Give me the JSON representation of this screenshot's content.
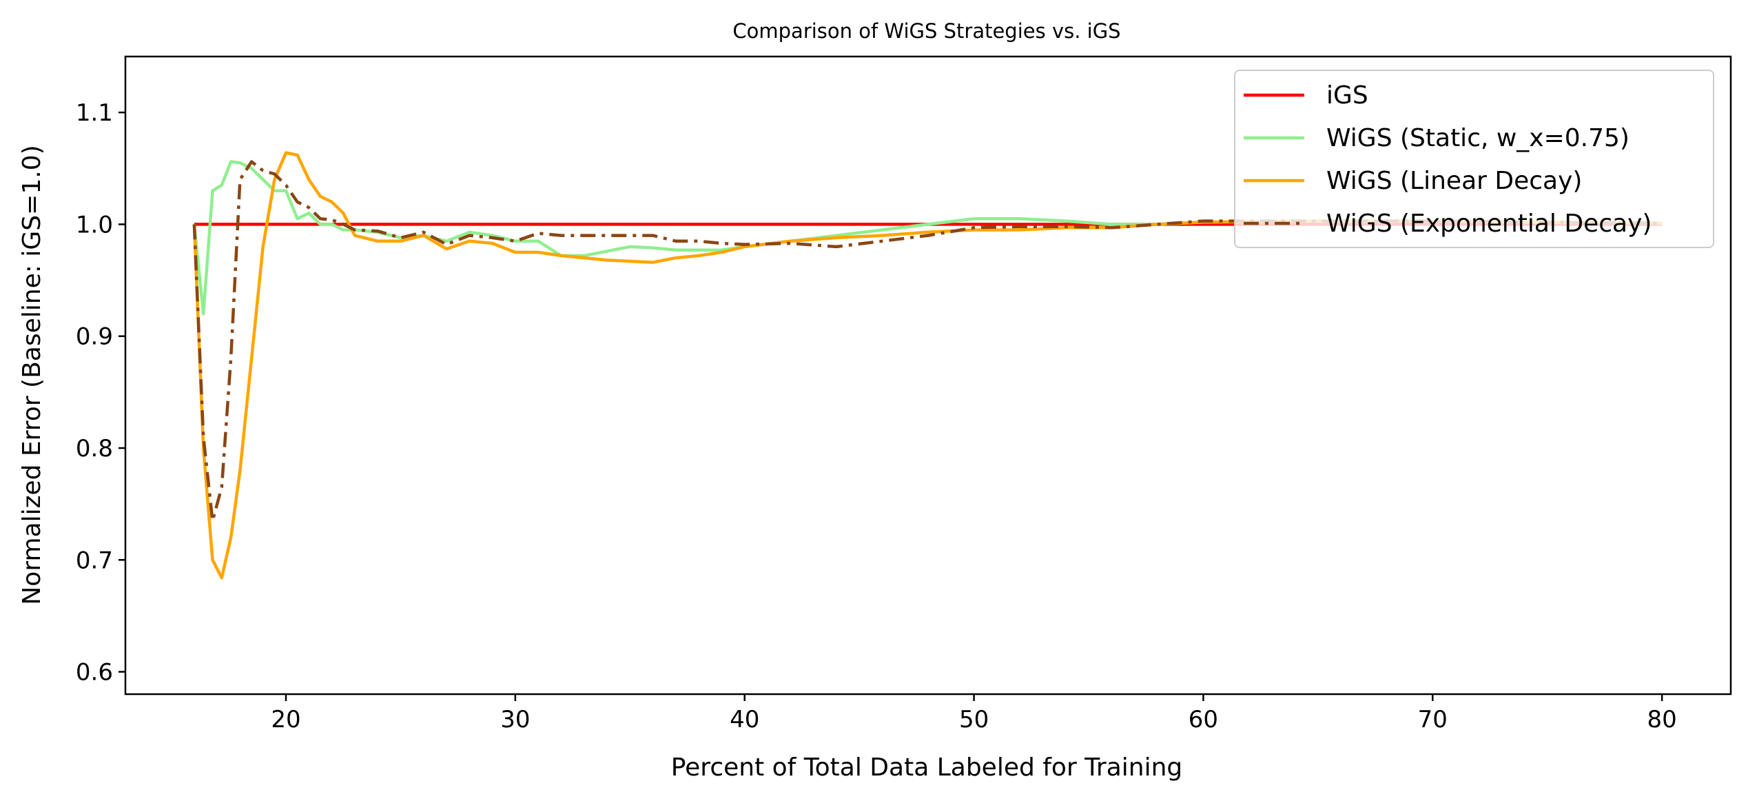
{
  "chart_data": {
    "type": "line",
    "title": "Comparison of WiGS Strategies vs. iGS",
    "xlabel": "Percent of Total Data Labeled for Training",
    "ylabel": "Normalized Error (Baseline: iGS=1.0)",
    "xlim": [
      13,
      83
    ],
    "ylim": [
      0.58,
      1.15
    ],
    "xticks": [
      20,
      30,
      40,
      50,
      60,
      70,
      80
    ],
    "xtick_labels": [
      "20",
      "30",
      "40",
      "50",
      "60",
      "70",
      "80"
    ],
    "yticks": [
      0.6,
      0.7,
      0.8,
      0.9,
      1.0,
      1.1
    ],
    "ytick_labels": [
      "0.6",
      "0.7",
      "0.8",
      "0.9",
      "1.0",
      "1.1"
    ],
    "grid": false,
    "legend_position": "upper right",
    "series": [
      {
        "name": "iGS",
        "color": "#ff0000",
        "style": "solid",
        "x": [
          16,
          80
        ],
        "y": [
          1.0,
          1.0
        ]
      },
      {
        "name": "WiGS (Static, w_x=0.75)",
        "color": "#90ee90",
        "style": "solid",
        "x": [
          16,
          16.4,
          16.8,
          17.2,
          17.6,
          18.0,
          18.5,
          19.0,
          19.5,
          20.0,
          20.5,
          21.0,
          21.5,
          22.0,
          22.5,
          23.0,
          24.0,
          25.0,
          26.0,
          27.0,
          28.0,
          29.0,
          30.0,
          31.0,
          32.0,
          33.0,
          34.0,
          35.0,
          36.0,
          37.0,
          38.0,
          39.0,
          40.0,
          42.0,
          44.0,
          46.0,
          48.0,
          50.0,
          52.0,
          54.0,
          56.0,
          58.0,
          60.0,
          65.0,
          70.0,
          75.0,
          80.0
        ],
        "y": [
          1.0,
          0.92,
          1.03,
          1.035,
          1.056,
          1.055,
          1.05,
          1.04,
          1.03,
          1.03,
          1.005,
          1.01,
          1.0,
          1.0,
          0.995,
          0.995,
          0.993,
          0.988,
          0.99,
          0.985,
          0.993,
          0.99,
          0.985,
          0.985,
          0.972,
          0.972,
          0.976,
          0.98,
          0.979,
          0.977,
          0.977,
          0.977,
          0.98,
          0.985,
          0.99,
          0.995,
          1.0,
          1.005,
          1.005,
          1.003,
          1.0,
          1.0,
          1.002,
          1.003,
          1.003,
          1.002,
          1.001
        ]
      },
      {
        "name": "WiGS (Linear Decay)",
        "color": "#ffa500",
        "style": "solid",
        "x": [
          16,
          16.4,
          16.8,
          17.2,
          17.6,
          18.0,
          18.5,
          19.0,
          19.5,
          20.0,
          20.5,
          21.0,
          21.5,
          22.0,
          22.5,
          23.0,
          24.0,
          25.0,
          26.0,
          27.0,
          28.0,
          29.0,
          30.0,
          31.0,
          32.0,
          33.0,
          34.0,
          35.0,
          36.0,
          37.0,
          38.0,
          39.0,
          40.0,
          42.0,
          44.0,
          46.0,
          48.0,
          50.0,
          52.0,
          54.0,
          56.0,
          58.0,
          60.0,
          65.0,
          70.0,
          75.0,
          80.0
        ],
        "y": [
          1.0,
          0.8,
          0.7,
          0.684,
          0.72,
          0.78,
          0.88,
          0.98,
          1.04,
          1.064,
          1.062,
          1.04,
          1.025,
          1.02,
          1.01,
          0.99,
          0.985,
          0.985,
          0.99,
          0.978,
          0.985,
          0.983,
          0.975,
          0.975,
          0.972,
          0.97,
          0.968,
          0.967,
          0.966,
          0.97,
          0.972,
          0.975,
          0.98,
          0.985,
          0.988,
          0.99,
          0.993,
          0.995,
          0.995,
          0.997,
          0.997,
          1.0,
          1.002,
          1.003,
          1.003,
          1.002,
          1.001
        ]
      },
      {
        "name": "WiGS (Exponential Decay)",
        "color": "#8b4513",
        "style": "dashdot",
        "x": [
          16,
          16.4,
          16.8,
          17.2,
          17.6,
          18.0,
          18.5,
          19.0,
          19.5,
          20.0,
          20.5,
          21.0,
          21.5,
          22.0,
          22.5,
          23.0,
          24.0,
          25.0,
          26.0,
          27.0,
          28.0,
          29.0,
          30.0,
          31.0,
          32.0,
          33.0,
          34.0,
          35.0,
          36.0,
          37.0,
          38.0,
          39.0,
          40.0,
          42.0,
          44.0,
          46.0,
          48.0,
          50.0,
          52.0,
          54.0,
          56.0,
          58.0,
          60.0,
          65.0,
          70.0,
          75.0,
          80.0
        ],
        "y": [
          1.0,
          0.81,
          0.735,
          0.765,
          0.88,
          1.04,
          1.056,
          1.048,
          1.045,
          1.035,
          1.02,
          1.015,
          1.005,
          1.004,
          1.0,
          0.995,
          0.994,
          0.988,
          0.993,
          0.982,
          0.99,
          0.988,
          0.985,
          0.992,
          0.99,
          0.99,
          0.99,
          0.99,
          0.99,
          0.985,
          0.985,
          0.983,
          0.982,
          0.983,
          0.98,
          0.985,
          0.99,
          0.997,
          0.998,
          0.998,
          0.997,
          1.0,
          1.003,
          1.003,
          1.003,
          1.002,
          1.001
        ]
      }
    ]
  }
}
